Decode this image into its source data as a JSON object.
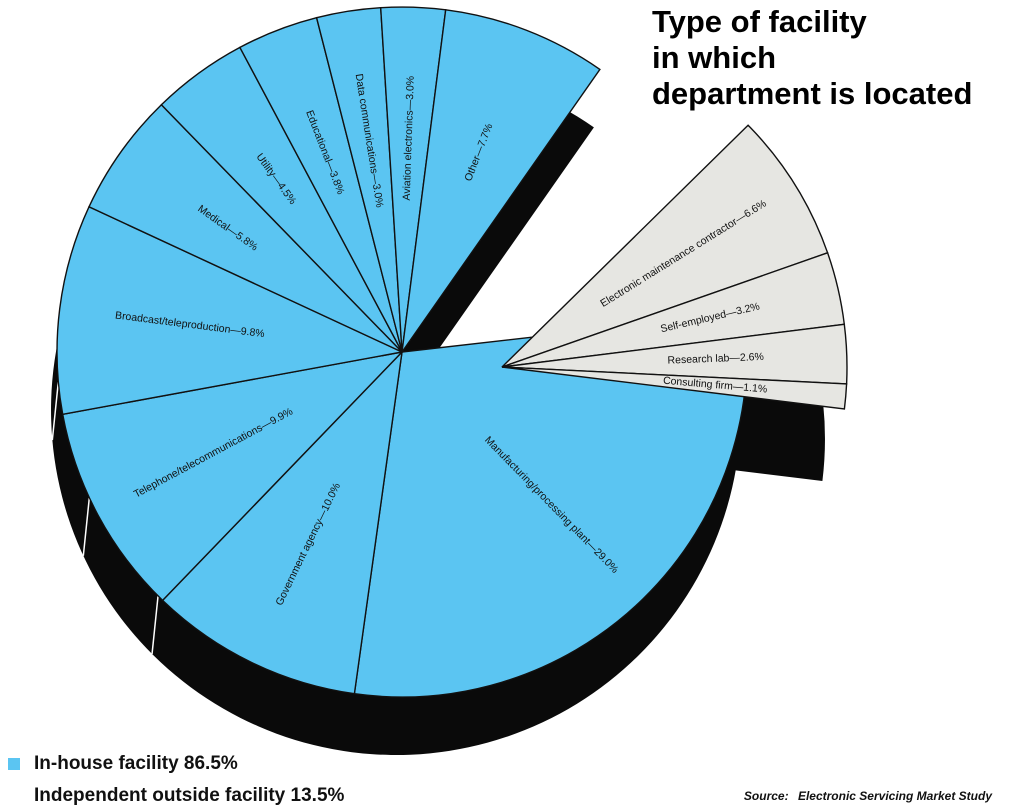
{
  "title_lines": [
    "Type of facility",
    "in which",
    "department is located"
  ],
  "chart_data": {
    "type": "pie",
    "title": "Type of facility in which department is located",
    "groups": [
      {
        "name": "In-house facility",
        "label": "In-house facility 86.5%",
        "total": 86.5,
        "color": "#5bc5f2",
        "slices": [
          {
            "label": "Manufacturing/processing plant—29.0%",
            "value": 29.0
          },
          {
            "label": "Government agency—10.0%",
            "value": 10.0
          },
          {
            "label": "Telephone/telecommunications—9.9%",
            "value": 9.9
          },
          {
            "label": "Broadcast/teleproduction—9.8%",
            "value": 9.8
          },
          {
            "label": "Medical—5.8%",
            "value": 5.8
          },
          {
            "label": "Utility—4.5%",
            "value": 4.5
          },
          {
            "label": "Educational—3.8%",
            "value": 3.8
          },
          {
            "label": "Data communications—3.0%",
            "value": 3.0
          },
          {
            "label": "Aviation electronics—3.0%",
            "value": 3.0
          },
          {
            "label": "Other—7.7%",
            "value": 7.7
          }
        ]
      },
      {
        "name": "Independent outside facility",
        "label": "Independent outside facility 13.5%",
        "total": 13.5,
        "color": "#e6e6e2",
        "slices": [
          {
            "label": "Electronic maintenance contractor—6.6%",
            "value": 6.6
          },
          {
            "label": "Self-employed—3.2%",
            "value": 3.2
          },
          {
            "label": "Research lab—2.6%",
            "value": 2.6
          },
          {
            "label": "Consulting firm—1.1%",
            "value": 1.1
          }
        ]
      }
    ]
  },
  "source": {
    "label": "Source:",
    "value": "Electronic Servicing Market Study"
  }
}
